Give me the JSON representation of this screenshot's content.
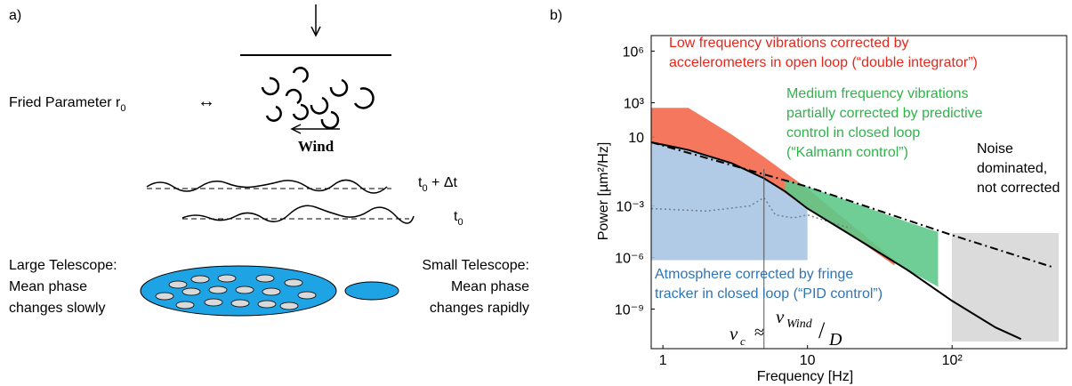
{
  "panel_a": {
    "label": "a)",
    "fried_parameter": "Fried Parameter r",
    "fried_sub": "0",
    "fried_arrow": "↔",
    "wind": "Wind",
    "t_late": "t",
    "t_late_sub": "0",
    "t_late_rest": " + Δt",
    "t_early": "t",
    "t_early_sub": "0",
    "large": [
      "Large Telescope:",
      "Mean phase",
      "changes slowly"
    ],
    "small": [
      "Small Telescope:",
      "Mean phase",
      "changes rapidly"
    ]
  },
  "chart_data": {
    "type": "line",
    "panel_label": "b)",
    "xlabel": "Frequency [Hz]",
    "ylabel": "Power [µm²/Hz]",
    "xscale": "log",
    "yscale": "log",
    "grid": false,
    "xlim": [
      0.83,
      620
    ],
    "ylim": [
      5e-12,
      8000000
    ],
    "xticks": [
      1,
      10,
      {
        "value": 100,
        "label": "10²"
      }
    ],
    "yticks": [
      {
        "value": 1000000,
        "label": "10⁶"
      },
      {
        "value": 1000,
        "label": "10³"
      },
      10,
      {
        "value": 0.001,
        "label": "10⁻³"
      },
      {
        "value": 1e-06,
        "label": "10⁻⁶"
      },
      {
        "value": 1e-09,
        "label": "10⁻⁹"
      }
    ],
    "marker_x": 5,
    "series": [
      {
        "kind": "area",
        "color": "#a9c5e4",
        "x": [
          0.83,
          1.5,
          3,
          5,
          7,
          10
        ],
        "values": [
          5,
          1.8,
          0.3,
          0.04,
          0.007,
          0.0007
        ],
        "floor": 7e-07
      },
      {
        "kind": "area",
        "color": "#f4694c",
        "x": [
          0.83,
          1.5,
          3,
          5,
          10,
          20,
          40
        ],
        "values": [
          500,
          500,
          14,
          0.7,
          0.01,
          8.5e-05,
          7e-07
        ],
        "lower": [
          5,
          1.8,
          0.3,
          0.04,
          0.0007,
          2e-05,
          3.4e-07
        ]
      },
      {
        "kind": "area",
        "color": "#5ec98a",
        "x": [
          7,
          10,
          20,
          50,
          80
        ],
        "values": [
          0.035,
          0.013,
          0.0017,
          0.00011,
          3e-05
        ],
        "lower": [
          0.007,
          0.0007,
          2e-05,
          1.7e-07,
          2e-08
        ]
      },
      {
        "kind": "line",
        "style": "dotted",
        "color": "#6f7f8f",
        "x": [
          0.83,
          2,
          4,
          5,
          6,
          8,
          10,
          15,
          20
        ],
        "values": [
          0.0007,
          0.0005,
          0.001,
          0.003,
          0.0003,
          0.0002,
          0.0003,
          0.0001,
          5e-05
        ]
      },
      {
        "kind": "line",
        "style": "solid",
        "color": "#000000",
        "x": [
          0.83,
          1.5,
          3,
          5,
          7,
          10,
          20,
          50,
          100,
          200,
          300
        ],
        "values": [
          5,
          1.8,
          0.3,
          0.04,
          0.007,
          0.0007,
          2e-05,
          1.7e-07,
          3e-09,
          8.5e-11,
          1.8e-11
        ]
      },
      {
        "kind": "line",
        "style": "dashdot",
        "color": "#000000",
        "x": [
          0.83,
          10,
          100,
          500
        ],
        "values": [
          5,
          0.013,
          2e-05,
          2.7e-07
        ]
      }
    ],
    "annotations": [
      {
        "color": "#e8251a",
        "lines": [
          "Low frequency vibrations corrected by",
          "accelerometers in open loop (“double integrator”)"
        ]
      },
      {
        "color": "#2fb34b",
        "lines": [
          "Medium frequency vibrations",
          "partially corrected by predictive",
          "control in closed loop",
          "(“Kalmann control”)"
        ]
      },
      {
        "color": "#000000",
        "lines": [
          "Noise",
          "dominated,",
          "not corrected"
        ]
      },
      {
        "color": "#2e75b6",
        "lines": [
          "Atmosphere corrected by fringe",
          "tracker in closed loop (“PID control”)"
        ]
      }
    ],
    "formula": {
      "nu": "ν",
      "nu_sub": "c",
      "approx": "≈",
      "v": "v",
      "v_sub": "Wind",
      "slash": "/",
      "D": "D"
    }
  }
}
